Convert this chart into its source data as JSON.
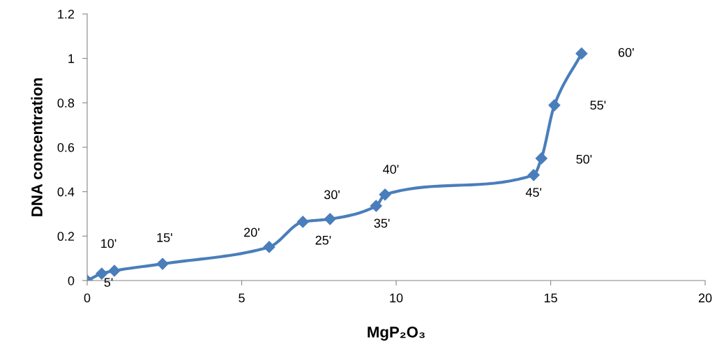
{
  "chart_data": {
    "type": "line",
    "xlabel": "MgP₂O₃",
    "ylabel": "DNA concentration",
    "x": [
      0,
      0.47,
      0.88,
      2.44,
      5.89,
      6.98,
      7.86,
      9.35,
      9.64,
      14.45,
      14.7,
      15.12,
      16.0
    ],
    "series": [
      {
        "color": "#4a7ebb",
        "values": [
          0,
          0.031,
          0.044,
          0.075,
          0.151,
          0.264,
          0.277,
          0.336,
          0.387,
          0.475,
          0.55,
          0.789,
          1.022
        ]
      }
    ],
    "marker": "diamond",
    "line_style": "solid",
    "grid": false,
    "xlim": [
      0,
      20
    ],
    "xticks": [
      0,
      5,
      10,
      15,
      20
    ],
    "ylim": [
      0,
      1.2
    ],
    "yticks": [
      0,
      0.2,
      0.4,
      0.6,
      0.8,
      1,
      1.2
    ],
    "annotations": [
      {
        "text": "5'",
        "x": 0,
        "y": 0
      },
      {
        "text": "10'",
        "x": 0.47,
        "y": 0.031
      },
      {
        "text": "15'",
        "x": 2.44,
        "y": 0.075
      },
      {
        "text": "20'",
        "x": 5.89,
        "y": 0.151
      },
      {
        "text": "25'",
        "x": 6.98,
        "y": 0.264
      },
      {
        "text": "30'",
        "x": 7.86,
        "y": 0.277
      },
      {
        "text": "35'",
        "x": 9.35,
        "y": 0.336
      },
      {
        "text": "40'",
        "x": 9.64,
        "y": 0.387
      },
      {
        "text": "45'",
        "x": 14.45,
        "y": 0.475
      },
      {
        "text": "50'",
        "x": 14.7,
        "y": 0.55
      },
      {
        "text": "55'",
        "x": 15.12,
        "y": 0.789
      },
      {
        "text": "60'",
        "x": 16.0,
        "y": 1.022
      }
    ]
  }
}
